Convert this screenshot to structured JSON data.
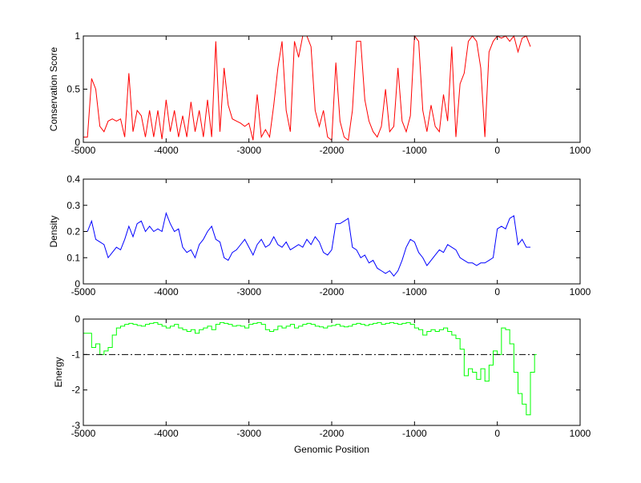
{
  "chart_data": [
    {
      "type": "line",
      "ylabel": "Conservation Score",
      "xlabel": "",
      "xlim": [
        -5000,
        1000
      ],
      "ylim": [
        0,
        1
      ],
      "xticks": [
        "-5000",
        "-4000",
        "-3000",
        "-2000",
        "-1000",
        "0",
        "1000"
      ],
      "xtick_values": [
        -5000,
        -4000,
        -3000,
        -2000,
        -1000,
        0,
        1000
      ],
      "yticks": [
        "0",
        "0.5",
        "1"
      ],
      "ytick_values": [
        0,
        0.5,
        1
      ],
      "color": "#ff0000",
      "step": false,
      "x_start": -5000,
      "x_step": 50,
      "values": [
        0.05,
        0.05,
        0.6,
        0.5,
        0.15,
        0.1,
        0.2,
        0.22,
        0.2,
        0.22,
        0.05,
        0.65,
        0.1,
        0.3,
        0.25,
        0.05,
        0.3,
        0.05,
        0.3,
        0.03,
        0.4,
        0.1,
        0.3,
        0.05,
        0.25,
        0.05,
        0.38,
        0.1,
        0.3,
        0.05,
        0.4,
        0.05,
        0.95,
        0.1,
        0.7,
        0.35,
        0.22,
        0.2,
        0.18,
        0.15,
        0.18,
        0.02,
        0.45,
        0.05,
        0.12,
        0.05,
        0.35,
        0.7,
        0.95,
        0.3,
        0.1,
        0.95,
        0.8,
        1,
        1,
        0.9,
        0.3,
        0.15,
        0.3,
        0.05,
        0.02,
        0.75,
        0.2,
        0.05,
        0.02,
        0.3,
        0.95,
        0.95,
        0.4,
        0.2,
        0.1,
        0.05,
        0.15,
        0.5,
        0.1,
        0.15,
        0.7,
        0.2,
        0.1,
        0.25,
        1,
        0.95,
        0.3,
        0.1,
        0.35,
        0.15,
        0.1,
        0.45,
        0.2,
        0.9,
        0.05,
        0.55,
        0.65,
        0.95,
        1,
        0.95,
        0.7,
        0.05,
        0.85,
        0.95,
        1,
        0.98,
        1,
        0.95,
        1,
        0.85,
        0.98,
        1,
        0.9
      ]
    },
    {
      "type": "line",
      "ylabel": "Density",
      "xlabel": "",
      "xlim": [
        -5000,
        1000
      ],
      "ylim": [
        0,
        0.4
      ],
      "xticks": [
        "-5000",
        "-4000",
        "-3000",
        "-2000",
        "-1000",
        "0",
        "1000"
      ],
      "xtick_values": [
        -5000,
        -4000,
        -3000,
        -2000,
        -1000,
        0,
        1000
      ],
      "yticks": [
        "0",
        "0.1",
        "0.2",
        "0.3",
        "0.4"
      ],
      "ytick_values": [
        0,
        0.1,
        0.2,
        0.3,
        0.4
      ],
      "color": "#0000ff",
      "step": false,
      "x_start": -4950,
      "x_step": 50,
      "values": [
        0.2,
        0.24,
        0.17,
        0.16,
        0.15,
        0.1,
        0.12,
        0.14,
        0.13,
        0.17,
        0.22,
        0.18,
        0.23,
        0.24,
        0.2,
        0.22,
        0.2,
        0.21,
        0.2,
        0.27,
        0.23,
        0.2,
        0.21,
        0.14,
        0.12,
        0.13,
        0.1,
        0.15,
        0.17,
        0.2,
        0.22,
        0.17,
        0.16,
        0.1,
        0.09,
        0.12,
        0.13,
        0.15,
        0.17,
        0.14,
        0.11,
        0.15,
        0.17,
        0.14,
        0.15,
        0.18,
        0.15,
        0.14,
        0.16,
        0.13,
        0.14,
        0.15,
        0.14,
        0.17,
        0.15,
        0.18,
        0.16,
        0.12,
        0.11,
        0.13,
        0.23,
        0.23,
        0.24,
        0.25,
        0.14,
        0.13,
        0.1,
        0.11,
        0.08,
        0.09,
        0.06,
        0.05,
        0.04,
        0.05,
        0.03,
        0.05,
        0.09,
        0.14,
        0.17,
        0.16,
        0.12,
        0.1,
        0.07,
        0.09,
        0.11,
        0.13,
        0.12,
        0.15,
        0.14,
        0.13,
        0.1,
        0.09,
        0.08,
        0.08,
        0.07,
        0.08,
        0.08,
        0.09,
        0.1,
        0.21,
        0.22,
        0.21,
        0.25,
        0.26,
        0.15,
        0.17,
        0.14,
        0.14
      ]
    },
    {
      "type": "line",
      "ylabel": "Energy",
      "xlabel": "Genomic Position",
      "xlim": [
        -5000,
        1000
      ],
      "ylim": [
        -3,
        0
      ],
      "xticks": [
        "-5000",
        "-4000",
        "-3000",
        "-2000",
        "-1000",
        "0",
        "1000"
      ],
      "xtick_values": [
        -5000,
        -4000,
        -3000,
        -2000,
        -1000,
        0,
        1000
      ],
      "yticks": [
        "-3",
        "-2",
        "-1",
        "0"
      ],
      "ytick_values": [
        -3,
        -2,
        -1,
        0
      ],
      "color": "#00ff00",
      "step": true,
      "threshold": -1,
      "threshold_color": "#000000",
      "x_start": -5000,
      "x_step": 50,
      "values": [
        -0.4,
        -0.4,
        -0.8,
        -0.7,
        -1.0,
        -0.9,
        -0.8,
        -0.45,
        -0.25,
        -0.2,
        -0.15,
        -0.12,
        -0.15,
        -0.18,
        -0.2,
        -0.15,
        -0.12,
        -0.1,
        -0.15,
        -0.2,
        -0.25,
        -0.2,
        -0.15,
        -0.25,
        -0.3,
        -0.35,
        -0.3,
        -0.4,
        -0.3,
        -0.25,
        -0.2,
        -0.3,
        -0.15,
        -0.1,
        -0.12,
        -0.15,
        -0.2,
        -0.18,
        -0.2,
        -0.25,
        -0.15,
        -0.12,
        -0.1,
        -0.15,
        -0.3,
        -0.35,
        -0.3,
        -0.2,
        -0.25,
        -0.2,
        -0.15,
        -0.25,
        -0.2,
        -0.15,
        -0.12,
        -0.15,
        -0.2,
        -0.22,
        -0.25,
        -0.2,
        -0.18,
        -0.15,
        -0.2,
        -0.22,
        -0.2,
        -0.15,
        -0.12,
        -0.15,
        -0.18,
        -0.15,
        -0.12,
        -0.1,
        -0.15,
        -0.12,
        -0.1,
        -0.12,
        -0.15,
        -0.12,
        -0.1,
        -0.15,
        -0.25,
        -0.3,
        -0.45,
        -0.35,
        -0.3,
        -0.35,
        -0.3,
        -0.25,
        -0.35,
        -0.45,
        -0.55,
        -0.85,
        -1.6,
        -1.4,
        -1.5,
        -1.7,
        -1.4,
        -1.75,
        -1.3,
        -0.9,
        -1.0,
        -0.25,
        -0.3,
        -0.7,
        -1.5,
        -2.1,
        -2.4,
        -2.7,
        -1.5,
        -1.0
      ]
    }
  ]
}
